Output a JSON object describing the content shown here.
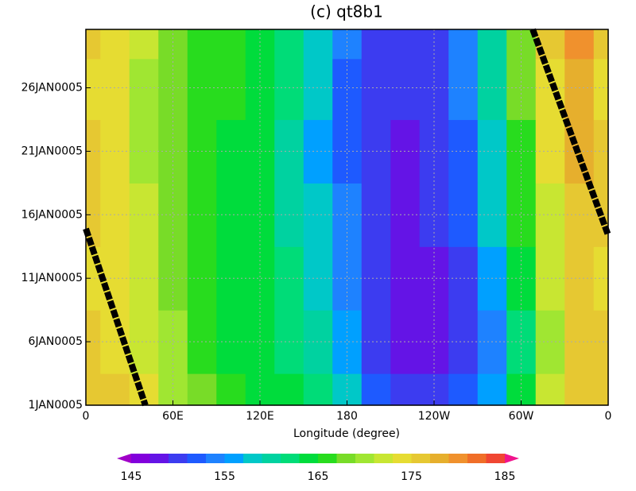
{
  "chart_data": {
    "type": "contour",
    "title": "(c) qt8b1",
    "x_label": "Longitude (degree)",
    "xlim": [
      0,
      360
    ],
    "xticks": [
      0,
      {
        "value": 60,
        "label": "60E"
      },
      {
        "value": 120,
        "label": "120E"
      },
      180,
      {
        "value": 240,
        "label": "120W"
      },
      {
        "value": 300,
        "label": "60W"
      },
      {
        "value": 360,
        "label": "0"
      }
    ],
    "ylim": [
      1,
      30.6
    ],
    "yticks": [
      {
        "value": 1,
        "label": "1JAN0005"
      },
      {
        "value": 6,
        "label": "6JAN0005"
      },
      {
        "value": 11,
        "label": "11JAN0005"
      },
      {
        "value": 16,
        "label": "16JAN0005"
      },
      {
        "value": 21,
        "label": "21JAN0005"
      },
      {
        "value": 26,
        "label": "26JAN0005"
      }
    ],
    "grid": true,
    "x": [
      0,
      20,
      40,
      60,
      80,
      100,
      120,
      140,
      160,
      180,
      200,
      220,
      240,
      260,
      280,
      300,
      320,
      340,
      360
    ],
    "y": [
      1,
      6,
      11,
      16,
      21,
      26,
      30.6
    ],
    "z": [
      [
        176,
        175,
        173,
        170,
        167,
        165,
        164,
        163,
        161,
        158,
        152,
        149,
        149,
        151,
        155,
        163,
        171,
        175,
        176
      ],
      [
        175,
        174,
        172,
        169,
        166,
        164,
        163,
        162,
        159,
        155,
        150,
        148,
        148,
        150,
        154,
        162,
        170,
        175,
        175
      ],
      [
        174,
        173,
        171,
        168,
        166,
        164,
        163,
        161,
        158,
        154,
        149,
        147,
        148,
        150,
        155,
        163,
        171,
        175,
        174
      ],
      [
        175,
        174,
        171,
        167,
        165,
        164,
        163,
        160,
        157,
        153,
        149,
        148,
        149,
        151,
        157,
        165,
        172,
        176,
        175
      ],
      [
        175,
        173,
        170,
        167,
        165,
        164,
        163,
        160,
        156,
        152,
        149,
        148,
        149,
        152,
        158,
        166,
        173,
        177,
        175
      ],
      [
        174,
        173,
        170,
        168,
        166,
        165,
        164,
        161,
        157,
        152,
        149,
        149,
        150,
        153,
        159,
        167,
        174,
        177,
        174
      ],
      [
        175,
        174,
        171,
        168,
        166,
        165,
        164,
        162,
        158,
        153,
        150,
        149,
        150,
        154,
        160,
        168,
        175,
        179,
        175
      ]
    ],
    "tracks": [
      {
        "color": "#000000",
        "x": [
          0,
          41
        ],
        "y": [
          14.9,
          1
        ]
      },
      {
        "color": "#000000",
        "x": [
          308,
          360
        ],
        "y": [
          30.6,
          14.4
        ]
      }
    ],
    "colorbar": {
      "levels": [
        145,
        147,
        149,
        151,
        153,
        155,
        157,
        159,
        161,
        163,
        165,
        167,
        169,
        171,
        173,
        175,
        177,
        179,
        181,
        183,
        185
      ],
      "colors": [
        "#a000c8",
        "#8200dc",
        "#6414e6",
        "#3c3cf0",
        "#1e5aff",
        "#1e82ff",
        "#00a0ff",
        "#00c8c8",
        "#00d2a0",
        "#00dc78",
        "#00dc3c",
        "#28dc1e",
        "#78dc28",
        "#a0e632",
        "#c8e632",
        "#e6dc32",
        "#e6c832",
        "#e6af2d",
        "#f0912d",
        "#f06e28",
        "#f04632",
        "#f0148c"
      ],
      "ticks": [
        145,
        155,
        165,
        175,
        185
      ]
    }
  }
}
